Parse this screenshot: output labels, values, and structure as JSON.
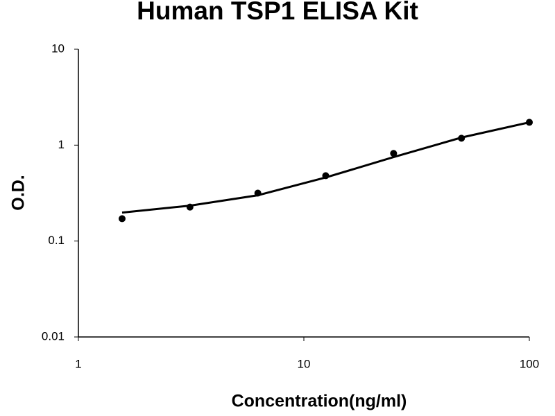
{
  "chart_data": {
    "type": "scatter",
    "title": "Human TSP1 ELISA Kit",
    "x_label": "Concentration(ng/ml)",
    "y_label": "O.D.",
    "x_log": true,
    "y_log": true,
    "xlim": [
      1,
      100
    ],
    "xticks": [
      1,
      10,
      100
    ],
    "ylim": [
      0.01,
      10
    ],
    "yticks": [
      0.01,
      0.1,
      1,
      10
    ],
    "series": [
      {
        "color": "#000000",
        "marker": "dot",
        "x": [
          1.5625,
          3.125,
          6.25,
          12.5,
          25,
          50,
          100
        ],
        "values": [
          0.171,
          0.226,
          0.316,
          0.48,
          0.82,
          1.18,
          1.73
        ]
      },
      {
        "color": "#000000",
        "marker": "line",
        "x": [
          1.5625,
          3.125,
          6.25,
          12.5,
          25,
          50,
          100
        ],
        "values": [
          0.198,
          0.234,
          0.3,
          0.46,
          0.75,
          1.2,
          1.73
        ]
      }
    ]
  }
}
